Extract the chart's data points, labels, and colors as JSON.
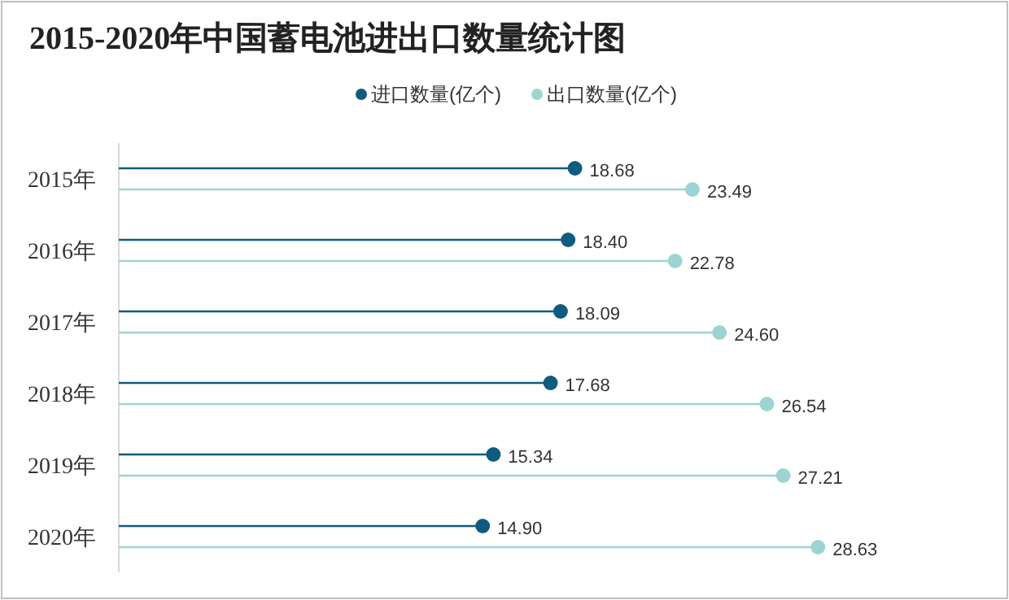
{
  "chart_data": {
    "type": "lollipop",
    "orientation": "horizontal",
    "title": "2015-2020年中国蓄电池进出口数量统计图",
    "categories": [
      "2015年",
      "2016年",
      "2017年",
      "2018年",
      "2019年",
      "2020年"
    ],
    "legend": "top",
    "marker": "circle",
    "series": [
      {
        "name": "进口数量(亿个)",
        "color": "#0f5c80",
        "values": [
          18.68,
          18.4,
          18.09,
          17.68,
          15.34,
          14.9
        ],
        "value_labels": [
          "18.68",
          "18.40",
          "18.09",
          "17.68",
          "15.34",
          "14.90"
        ]
      },
      {
        "name": "出口数量(亿个)",
        "color": "#9ed3d3",
        "values": [
          23.49,
          22.78,
          24.6,
          26.54,
          27.21,
          28.63
        ],
        "value_labels": [
          "23.49",
          "22.78",
          "24.60",
          "26.54",
          "27.21",
          "28.63"
        ]
      }
    ]
  }
}
